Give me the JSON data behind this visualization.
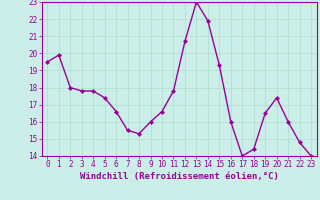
{
  "x": [
    0,
    1,
    2,
    3,
    4,
    5,
    6,
    7,
    8,
    9,
    10,
    11,
    12,
    13,
    14,
    15,
    16,
    17,
    18,
    19,
    20,
    21,
    22,
    23
  ],
  "y": [
    19.5,
    19.9,
    18.0,
    17.8,
    17.8,
    17.4,
    16.6,
    15.5,
    15.3,
    16.0,
    16.6,
    17.8,
    20.7,
    23.0,
    21.9,
    19.3,
    16.0,
    14.0,
    14.4,
    16.5,
    17.4,
    16.0,
    14.8,
    14.0
  ],
  "line_color": "#990099",
  "marker": "D",
  "marker_size": 2,
  "linewidth": 1.0,
  "bg_color": "#cceee8",
  "grid_color": "#aaddcc",
  "xlabel": "Windchill (Refroidissement éolien,°C)",
  "ylabel": "",
  "ylim": [
    14,
    23
  ],
  "xlim": [
    -0.5,
    23.5
  ],
  "yticks": [
    14,
    15,
    16,
    17,
    18,
    19,
    20,
    21,
    22,
    23
  ],
  "xticks": [
    0,
    1,
    2,
    3,
    4,
    5,
    6,
    7,
    8,
    9,
    10,
    11,
    12,
    13,
    14,
    15,
    16,
    17,
    18,
    19,
    20,
    21,
    22,
    23
  ],
  "tick_fontsize": 5.5,
  "xlabel_fontsize": 6.5,
  "tick_color": "#990099",
  "label_color": "#990099",
  "spine_color": "#990099"
}
